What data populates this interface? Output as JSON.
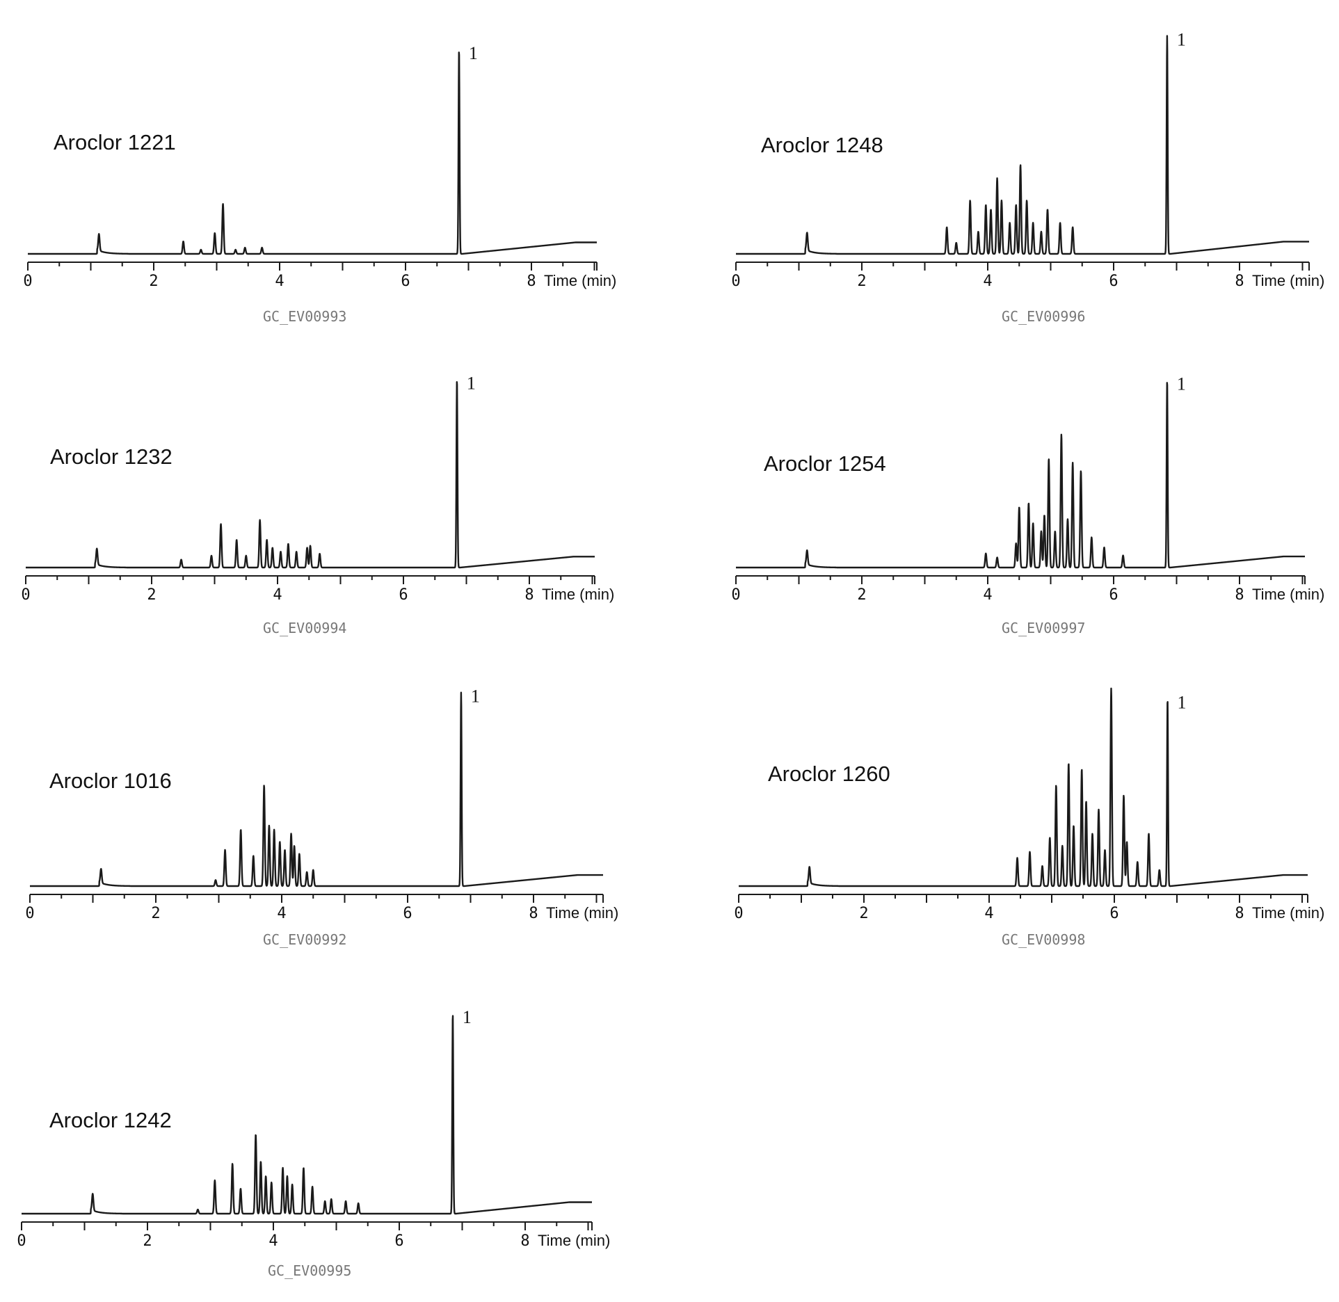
{
  "chart_data": [
    {
      "type": "line",
      "title": "Aroclor 1221",
      "code": "GC_EV00993",
      "xlabel": "Time (min)",
      "x_ticks": [
        "0",
        "2",
        "4",
        "6",
        "8"
      ],
      "xlim": [
        0,
        9.1
      ],
      "ylim": [
        0,
        1
      ],
      "ref_peak": {
        "label": "1",
        "x": 6.85
      },
      "peaks": [
        [
          1.13,
          0.08
        ],
        [
          2.47,
          0.06
        ],
        [
          2.75,
          0.02
        ],
        [
          2.97,
          0.1
        ],
        [
          3.1,
          0.24
        ],
        [
          3.3,
          0.02
        ],
        [
          3.45,
          0.03
        ],
        [
          3.72,
          0.03
        ],
        [
          6.85,
          0.98
        ]
      ]
    },
    {
      "type": "line",
      "title": "Aroclor 1232",
      "code": "GC_EV00994",
      "xlabel": "Time (min)",
      "x_ticks": [
        "0",
        "2",
        "4",
        "6",
        "8"
      ],
      "xlim": [
        0,
        9.1
      ],
      "ylim": [
        0,
        1
      ],
      "ref_peak": {
        "label": "1",
        "x": 6.85
      },
      "peaks": [
        [
          1.13,
          0.08
        ],
        [
          2.47,
          0.04
        ],
        [
          2.95,
          0.06
        ],
        [
          3.1,
          0.22
        ],
        [
          3.35,
          0.14
        ],
        [
          3.5,
          0.06
        ],
        [
          3.72,
          0.24
        ],
        [
          3.83,
          0.14
        ],
        [
          3.92,
          0.1
        ],
        [
          4.05,
          0.08
        ],
        [
          4.17,
          0.12
        ],
        [
          4.3,
          0.08
        ],
        [
          4.47,
          0.1
        ],
        [
          4.52,
          0.11
        ],
        [
          4.67,
          0.07
        ],
        [
          6.85,
          0.95
        ]
      ]
    },
    {
      "type": "line",
      "title": "Aroclor 1016",
      "code": "GC_EV00992",
      "xlabel": "Time (min)",
      "x_ticks": [
        "0",
        "2",
        "4",
        "6",
        "8"
      ],
      "xlim": [
        0,
        9.1
      ],
      "ylim": [
        0,
        1
      ],
      "ref_peak": {
        "label": "1",
        "x": 6.85
      },
      "peaks": [
        [
          1.13,
          0.07
        ],
        [
          2.95,
          0.03
        ],
        [
          3.1,
          0.18
        ],
        [
          3.35,
          0.28
        ],
        [
          3.55,
          0.15
        ],
        [
          3.72,
          0.5
        ],
        [
          3.8,
          0.3
        ],
        [
          3.88,
          0.28
        ],
        [
          3.97,
          0.22
        ],
        [
          4.05,
          0.18
        ],
        [
          4.15,
          0.26
        ],
        [
          4.2,
          0.2
        ],
        [
          4.28,
          0.16
        ],
        [
          4.4,
          0.07
        ],
        [
          4.5,
          0.08
        ],
        [
          6.85,
          0.96
        ]
      ]
    },
    {
      "type": "line",
      "title": "Aroclor 1242",
      "code": "GC_EV00995",
      "xlabel": "Time (min)",
      "x_ticks": [
        "0",
        "2",
        "4",
        "6",
        "8"
      ],
      "xlim": [
        0,
        9.1
      ],
      "ylim": [
        0,
        1
      ],
      "ref_peak": {
        "label": "1",
        "x": 6.85
      },
      "peaks": [
        [
          1.13,
          0.08
        ],
        [
          2.8,
          0.02
        ],
        [
          3.07,
          0.16
        ],
        [
          3.35,
          0.24
        ],
        [
          3.48,
          0.12
        ],
        [
          3.72,
          0.38
        ],
        [
          3.8,
          0.25
        ],
        [
          3.88,
          0.18
        ],
        [
          3.97,
          0.15
        ],
        [
          4.15,
          0.22
        ],
        [
          4.22,
          0.18
        ],
        [
          4.3,
          0.14
        ],
        [
          4.48,
          0.22
        ],
        [
          4.62,
          0.13
        ],
        [
          4.82,
          0.06
        ],
        [
          4.92,
          0.07
        ],
        [
          5.15,
          0.06
        ],
        [
          5.35,
          0.05
        ],
        [
          6.85,
          0.96
        ]
      ]
    },
    {
      "type": "line",
      "title": "Aroclor 1248",
      "code": "GC_EV00996",
      "xlabel": "Time (min)",
      "x_ticks": [
        "0",
        "2",
        "4",
        "6",
        "8"
      ],
      "xlim": [
        0,
        9.1
      ],
      "ylim": [
        0,
        1
      ],
      "ref_peak": {
        "label": "1",
        "x": 6.85
      },
      "peaks": [
        [
          1.13,
          0.08
        ],
        [
          3.35,
          0.12
        ],
        [
          3.5,
          0.05
        ],
        [
          3.72,
          0.24
        ],
        [
          3.85,
          0.1
        ],
        [
          3.97,
          0.22
        ],
        [
          4.05,
          0.2
        ],
        [
          4.15,
          0.34
        ],
        [
          4.22,
          0.24
        ],
        [
          4.35,
          0.14
        ],
        [
          4.45,
          0.22
        ],
        [
          4.52,
          0.4
        ],
        [
          4.62,
          0.24
        ],
        [
          4.72,
          0.14
        ],
        [
          4.85,
          0.1
        ],
        [
          4.95,
          0.2
        ],
        [
          5.15,
          0.14
        ],
        [
          5.35,
          0.12
        ],
        [
          6.85,
          0.98
        ]
      ]
    },
    {
      "type": "line",
      "title": "Aroclor 1254",
      "code": "GC_EV00997",
      "xlabel": "Time (min)",
      "x_ticks": [
        "0",
        "2",
        "4",
        "6",
        "8"
      ],
      "xlim": [
        0,
        9.1
      ],
      "ylim": [
        0,
        1
      ],
      "ref_peak": {
        "label": "1",
        "x": 6.85
      },
      "peaks": [
        [
          1.13,
          0.07
        ],
        [
          3.97,
          0.07
        ],
        [
          4.15,
          0.05
        ],
        [
          4.45,
          0.12
        ],
        [
          4.5,
          0.3
        ],
        [
          4.65,
          0.32
        ],
        [
          4.72,
          0.22
        ],
        [
          4.85,
          0.18
        ],
        [
          4.9,
          0.26
        ],
        [
          4.97,
          0.54
        ],
        [
          5.07,
          0.18
        ],
        [
          5.17,
          0.66
        ],
        [
          5.27,
          0.24
        ],
        [
          5.35,
          0.52
        ],
        [
          5.48,
          0.48
        ],
        [
          5.65,
          0.15
        ],
        [
          5.85,
          0.1
        ],
        [
          6.15,
          0.06
        ],
        [
          6.85,
          0.93
        ]
      ]
    },
    {
      "type": "line",
      "title": "Aroclor 1260",
      "code": "GC_EV00998",
      "xlabel": "Time (min)",
      "x_ticks": [
        "0",
        "2",
        "4",
        "6",
        "8"
      ],
      "xlim": [
        0,
        9.1
      ],
      "ylim": [
        0,
        1
      ],
      "ref_peak": {
        "label": "1",
        "x": 6.85
      },
      "peaks": [
        [
          1.13,
          0.08
        ],
        [
          4.45,
          0.14
        ],
        [
          4.65,
          0.17
        ],
        [
          4.85,
          0.1
        ],
        [
          4.97,
          0.24
        ],
        [
          5.07,
          0.5
        ],
        [
          5.17,
          0.2
        ],
        [
          5.27,
          0.61
        ],
        [
          5.35,
          0.3
        ],
        [
          5.48,
          0.58
        ],
        [
          5.55,
          0.42
        ],
        [
          5.65,
          0.26
        ],
        [
          5.75,
          0.38
        ],
        [
          5.85,
          0.18
        ],
        [
          5.95,
          0.98
        ],
        [
          6.15,
          0.45
        ],
        [
          6.2,
          0.22
        ],
        [
          6.37,
          0.12
        ],
        [
          6.55,
          0.26
        ],
        [
          6.72,
          0.08
        ],
        [
          6.85,
          0.93
        ]
      ]
    }
  ]
}
